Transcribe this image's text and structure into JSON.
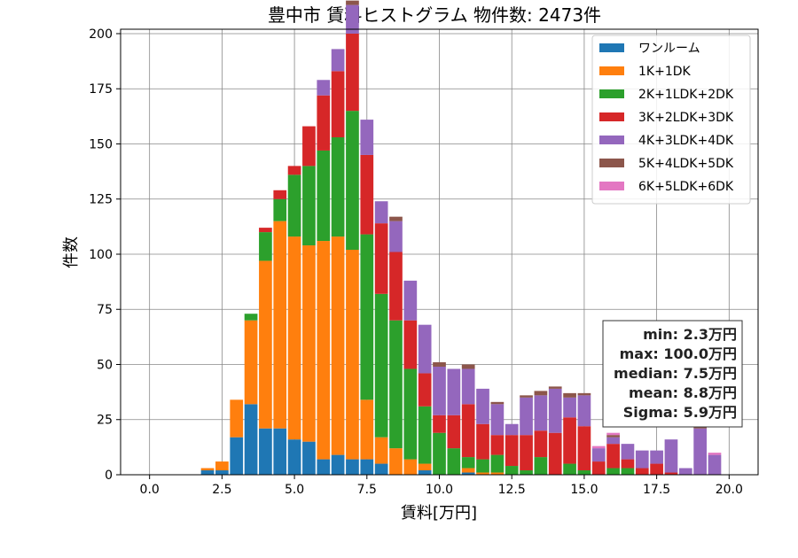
{
  "chart_data": {
    "type": "bar",
    "title": "豊中市 賃料ヒストグラム 物件数: 2473件",
    "xlabel": "賃料[万円]",
    "ylabel": "件数",
    "xlim": [
      -1,
      21
    ],
    "ylim": [
      0,
      202
    ],
    "xticks": [
      "0.0",
      "2.5",
      "5.0",
      "7.5",
      "10.0",
      "12.5",
      "15.0",
      "17.5",
      "20.0"
    ],
    "xtick_values": [
      0,
      2.5,
      5,
      7.5,
      10,
      12.5,
      15,
      17.5,
      20
    ],
    "yticks": [
      "0",
      "25",
      "50",
      "75",
      "100",
      "125",
      "150",
      "175",
      "200"
    ],
    "ytick_values": [
      0,
      25,
      50,
      75,
      100,
      125,
      150,
      175,
      200
    ],
    "grid": true,
    "legend_position": "top-right",
    "bin_width": 0.5,
    "x": [
      2.0,
      2.5,
      3.0,
      3.5,
      4.0,
      4.5,
      5.0,
      5.5,
      6.0,
      6.5,
      7.0,
      7.5,
      8.0,
      8.5,
      9.0,
      9.5,
      10.0,
      10.5,
      11.0,
      11.5,
      12.0,
      12.5,
      13.0,
      13.5,
      14.0,
      14.5,
      15.0,
      15.5,
      16.0,
      16.5,
      17.0,
      17.5,
      18.0,
      18.5,
      19.0,
      19.5
    ],
    "series": [
      {
        "name": "ワンルーム",
        "color": "#1f77b4",
        "values": [
          2,
          2,
          17,
          32,
          21,
          21,
          16,
          15,
          7,
          9,
          7,
          7,
          5,
          0,
          0,
          2,
          0,
          0,
          1,
          0,
          0,
          0,
          0,
          0,
          0,
          0,
          0,
          0,
          0,
          0,
          0,
          0,
          0,
          0,
          0,
          0
        ]
      },
      {
        "name": "1K+1DK",
        "color": "#ff7f0e",
        "values": [
          1,
          4,
          17,
          38,
          76,
          94,
          92,
          89,
          99,
          99,
          95,
          27,
          12,
          12,
          7,
          3,
          0,
          0,
          2,
          1,
          1,
          0,
          0,
          0,
          0,
          0,
          0,
          0,
          0,
          0,
          0,
          0,
          0,
          0,
          0,
          0
        ]
      },
      {
        "name": "2K+1LDK+2DK",
        "color": "#2ca02c",
        "values": [
          0,
          0,
          0,
          3,
          13,
          10,
          28,
          36,
          41,
          45,
          63,
          75,
          65,
          58,
          41,
          26,
          19,
          12,
          5,
          6,
          8,
          4,
          2,
          8,
          0,
          5,
          2,
          0,
          3,
          3,
          0,
          0,
          0,
          0,
          0,
          0
        ]
      },
      {
        "name": "3K+2LDK+3DK",
        "color": "#d62728",
        "values": [
          0,
          0,
          0,
          0,
          2,
          4,
          4,
          18,
          25,
          30,
          35,
          36,
          32,
          31,
          22,
          15,
          8,
          15,
          24,
          16,
          9,
          14,
          16,
          12,
          19,
          21,
          20,
          6,
          11,
          4,
          3,
          5,
          1,
          0,
          0,
          0
        ]
      },
      {
        "name": "4K+3LDK+4DK",
        "color": "#9467bd",
        "values": [
          0,
          0,
          0,
          0,
          0,
          0,
          0,
          0,
          7,
          10,
          13,
          16,
          10,
          14,
          18,
          22,
          22,
          21,
          16,
          16,
          14,
          5,
          17,
          16,
          20,
          9,
          14,
          6,
          3,
          7,
          8,
          6,
          15,
          3,
          21,
          9
        ]
      },
      {
        "name": "5K+4LDK+5DK",
        "color": "#8c564b",
        "values": [
          0,
          0,
          0,
          0,
          0,
          0,
          0,
          0,
          0,
          0,
          2,
          0,
          0,
          2,
          0,
          0,
          2,
          0,
          2,
          0,
          1,
          0,
          1,
          2,
          1,
          2,
          1,
          0,
          1,
          0,
          0,
          0,
          0,
          0,
          1,
          0
        ]
      },
      {
        "name": "6K+5LDK+6DK",
        "color": "#e377c2",
        "values": [
          0,
          0,
          0,
          0,
          0,
          0,
          0,
          0,
          0,
          0,
          0,
          0,
          0,
          0,
          0,
          0,
          0,
          0,
          0,
          0,
          0,
          0,
          0,
          0,
          0,
          0,
          0,
          1,
          1,
          0,
          0,
          0,
          0,
          0,
          0,
          1
        ]
      }
    ],
    "stats": [
      "min: 2.3万円",
      "max: 100.0万円",
      "median: 7.5万円",
      "mean: 8.8万円",
      "Sigma: 5.9万円"
    ]
  }
}
